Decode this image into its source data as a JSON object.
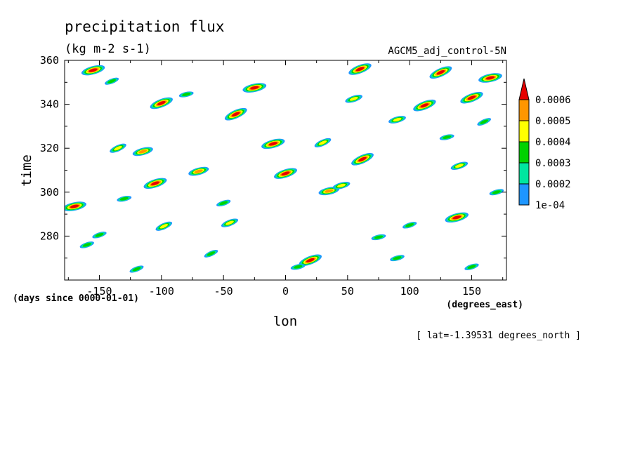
{
  "chart_data": {
    "type": "heatmap",
    "title": "precipitation flux",
    "units": "(kg m-2 s-1)",
    "dataset": "AGCM5_adj_control-5N",
    "xlabel": "lon",
    "ylabel": "time",
    "x_units": "(degrees_east)",
    "y_units": "(days since 0000-01-01)",
    "subtitle": "[ lat=-1.39531 degrees_north ]",
    "xlim": [
      -178,
      178
    ],
    "ylim": [
      260,
      360
    ],
    "x_ticks": [
      -150,
      -100,
      -50,
      0,
      50,
      100,
      150
    ],
    "x_tick_labels": [
      "-150",
      "-100",
      "-50",
      "0",
      "50",
      "100",
      "150"
    ],
    "y_ticks": [
      280,
      300,
      320,
      340,
      360
    ],
    "y_tick_labels": [
      "280",
      "300",
      "320",
      "340",
      "360"
    ],
    "legend": {
      "placement": "right",
      "levels": [
        0.0001,
        0.0002,
        0.0003,
        0.0004,
        0.0005,
        0.0006
      ],
      "labels": [
        "1e-04",
        "0.0002",
        "0.0003",
        "0.0004",
        "0.0005",
        "0.0006"
      ],
      "colors": [
        "#1e96ff",
        "#00e6a0",
        "#00d200",
        "#ffff00",
        "#ff9600",
        "#e60000"
      ]
    },
    "blobs": [
      {
        "lon": -170,
        "time": 293.5,
        "value": 0.00065
      },
      {
        "lon": -155,
        "time": 355.5,
        "value": 0.0006
      },
      {
        "lon": -150,
        "time": 280.5,
        "value": 0.00035
      },
      {
        "lon": -140,
        "time": 350.5,
        "value": 0.00035
      },
      {
        "lon": -135,
        "time": 320,
        "value": 0.00045
      },
      {
        "lon": -130,
        "time": 297,
        "value": 0.0003
      },
      {
        "lon": -115,
        "time": 318.5,
        "value": 0.00055
      },
      {
        "lon": -105,
        "time": 304,
        "value": 0.00065
      },
      {
        "lon": -100,
        "time": 340.5,
        "value": 0.00065
      },
      {
        "lon": -98,
        "time": 284.5,
        "value": 0.0004
      },
      {
        "lon": -80,
        "time": 344.5,
        "value": 0.0003
      },
      {
        "lon": -70,
        "time": 309.5,
        "value": 0.00055
      },
      {
        "lon": -50,
        "time": 295,
        "value": 0.00035
      },
      {
        "lon": -45,
        "time": 286,
        "value": 0.0004
      },
      {
        "lon": -40,
        "time": 335.5,
        "value": 0.00065
      },
      {
        "lon": -25,
        "time": 347.5,
        "value": 0.0006
      },
      {
        "lon": -10,
        "time": 322,
        "value": 0.0006
      },
      {
        "lon": 0,
        "time": 308.5,
        "value": 0.0006
      },
      {
        "lon": 20,
        "time": 269,
        "value": 0.0006
      },
      {
        "lon": 30,
        "time": 322.5,
        "value": 0.00045
      },
      {
        "lon": 35,
        "time": 300.5,
        "value": 0.00055
      },
      {
        "lon": 45,
        "time": 303,
        "value": 0.00045
      },
      {
        "lon": 55,
        "time": 342.5,
        "value": 0.0004
      },
      {
        "lon": 60,
        "time": 356,
        "value": 0.0006
      },
      {
        "lon": 62,
        "time": 315,
        "value": 0.00065
      },
      {
        "lon": 75,
        "time": 279.5,
        "value": 0.00035
      },
      {
        "lon": 90,
        "time": 333,
        "value": 0.0004
      },
      {
        "lon": 100,
        "time": 285,
        "value": 0.00035
      },
      {
        "lon": 112,
        "time": 339.5,
        "value": 0.00065
      },
      {
        "lon": 125,
        "time": 354.5,
        "value": 0.00065
      },
      {
        "lon": 130,
        "time": 325,
        "value": 0.00035
      },
      {
        "lon": 138,
        "time": 288.5,
        "value": 0.00065
      },
      {
        "lon": 140,
        "time": 312,
        "value": 0.00045
      },
      {
        "lon": 150,
        "time": 343,
        "value": 0.0006
      },
      {
        "lon": 160,
        "time": 332,
        "value": 0.0003
      },
      {
        "lon": 165,
        "time": 352,
        "value": 0.0006
      },
      {
        "lon": 170,
        "time": 300,
        "value": 0.0003
      },
      {
        "lon": -160,
        "time": 276,
        "value": 0.0003
      },
      {
        "lon": -120,
        "time": 265,
        "value": 0.0003
      },
      {
        "lon": -60,
        "time": 272,
        "value": 0.0003
      },
      {
        "lon": 10,
        "time": 266,
        "value": 0.0003
      },
      {
        "lon": 90,
        "time": 270,
        "value": 0.0003
      },
      {
        "lon": 150,
        "time": 266,
        "value": 0.0003
      }
    ]
  }
}
